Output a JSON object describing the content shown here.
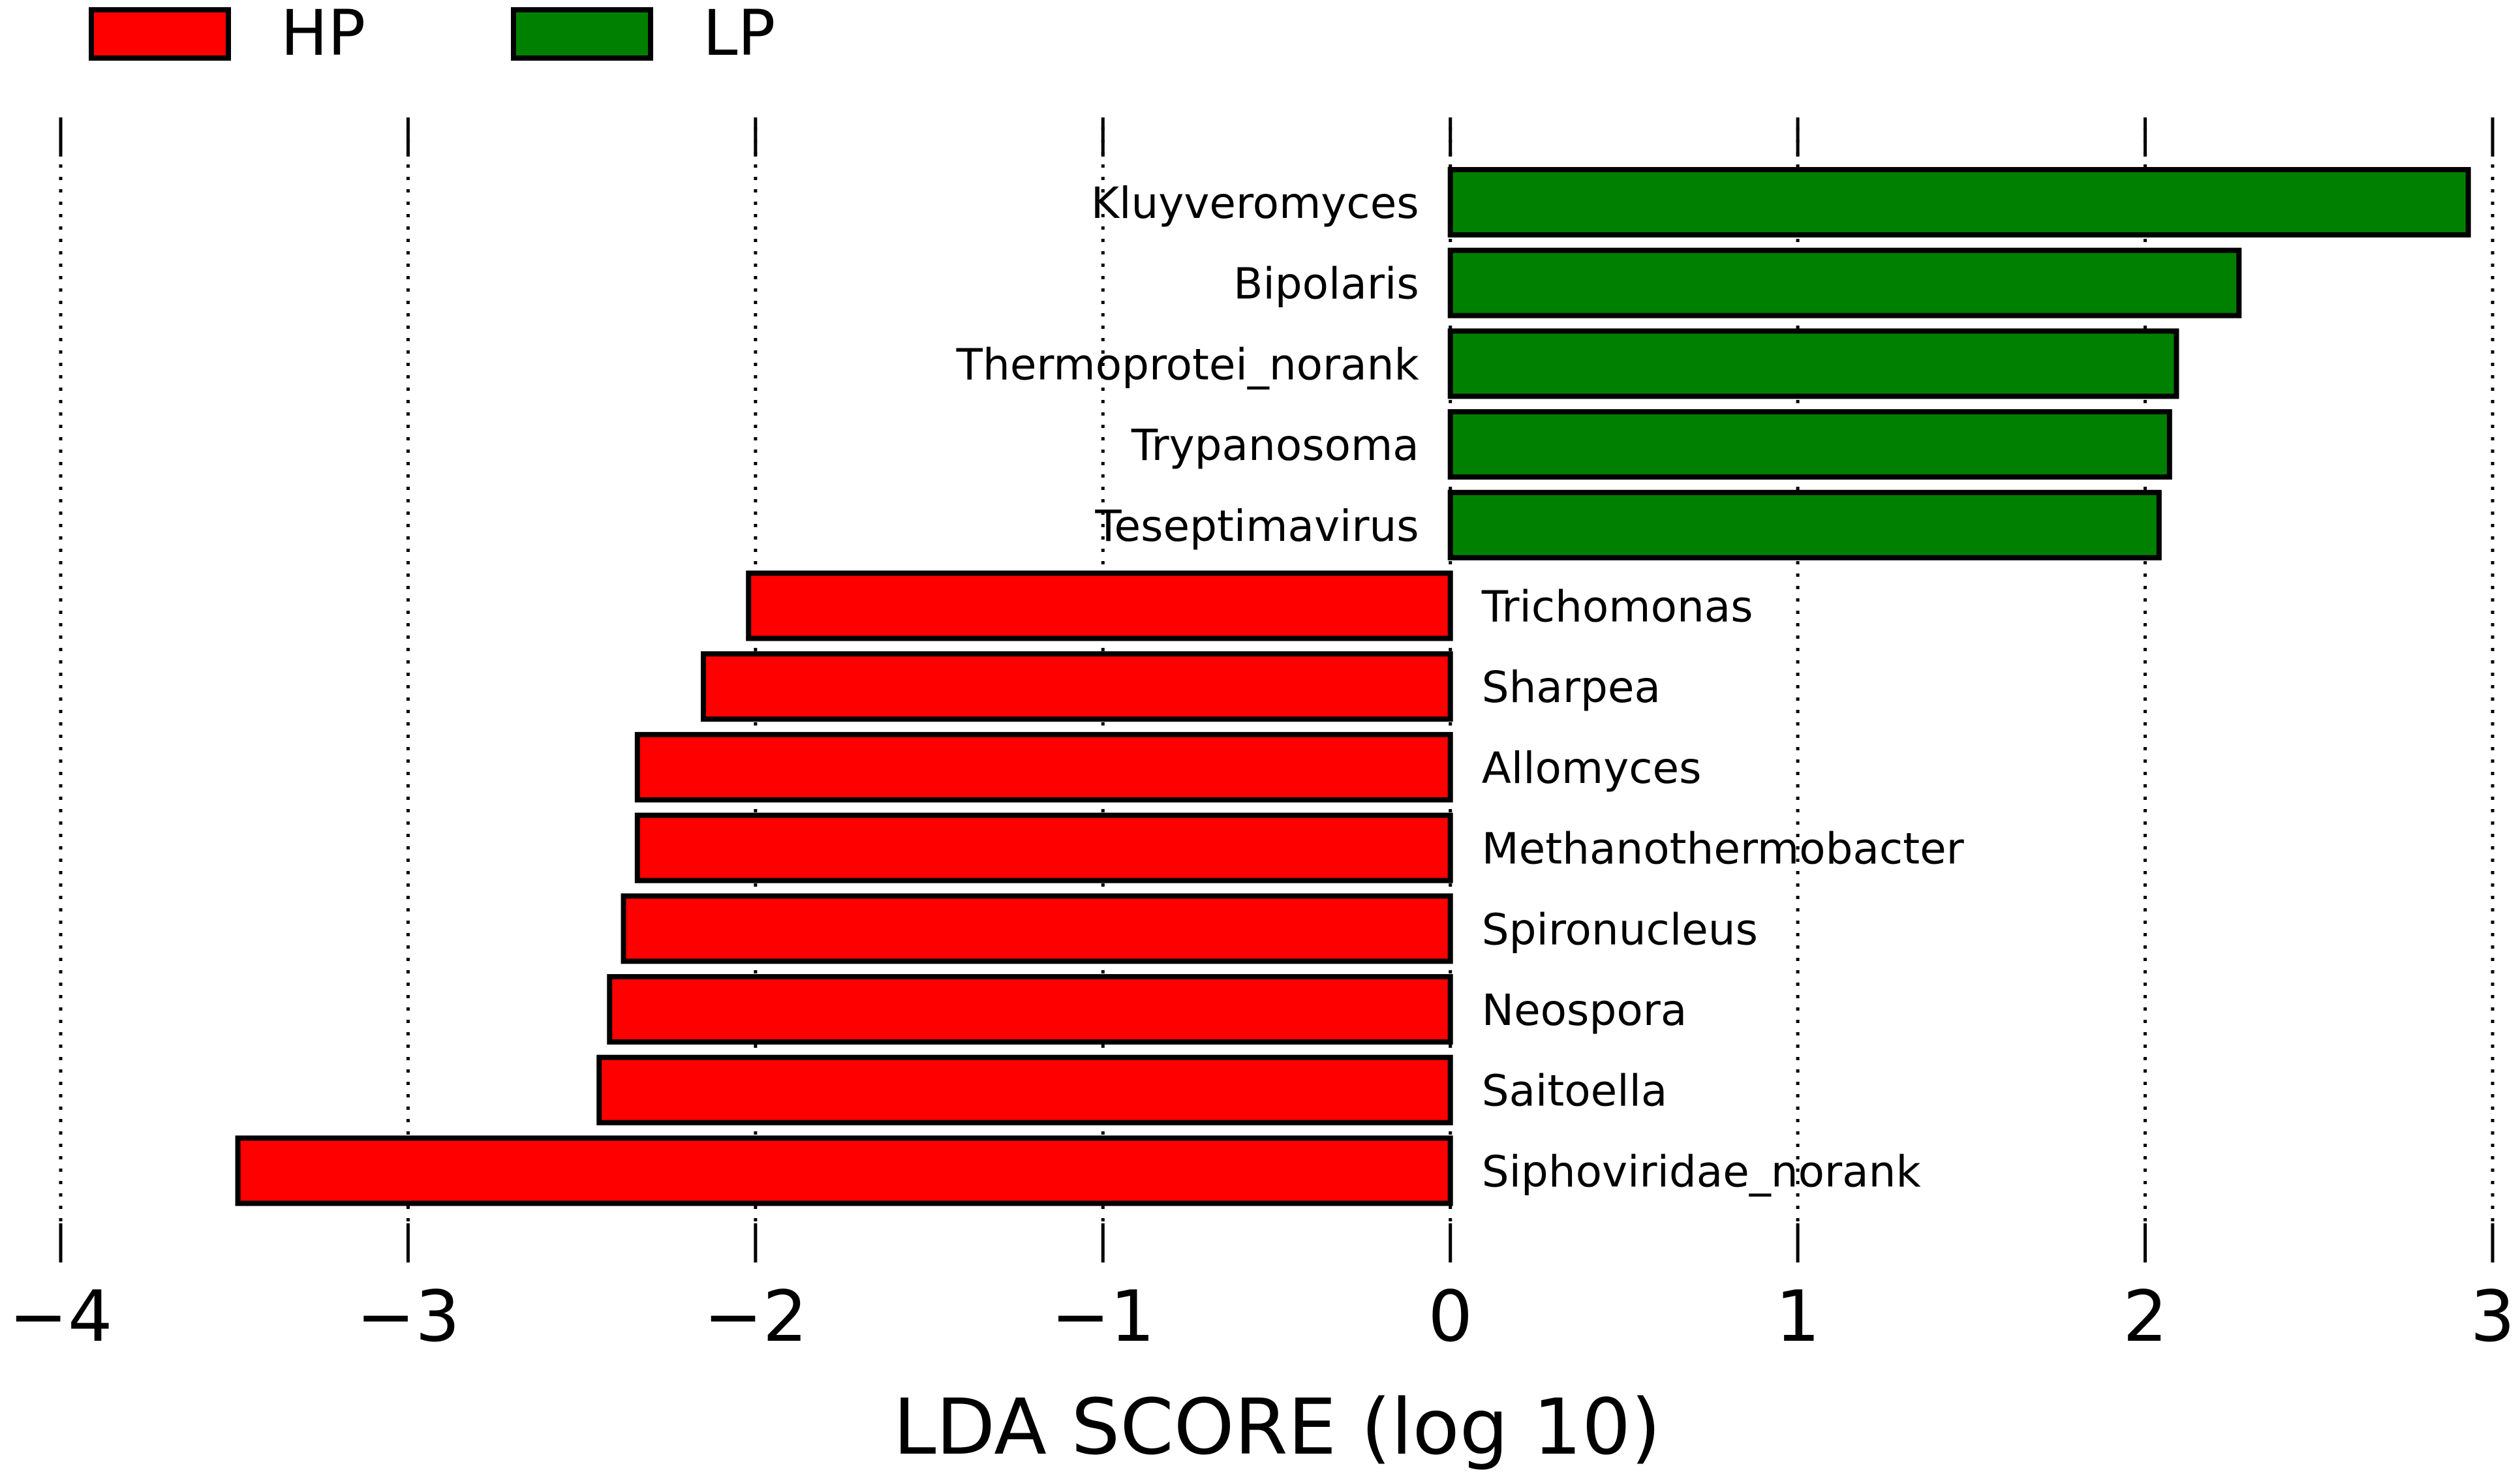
{
  "chart_data": {
    "type": "bar",
    "orientation": "horizontal",
    "xlabel": "LDA SCORE (log 10)",
    "xlim": [
      -4,
      3
    ],
    "xticks": [
      -4,
      -3,
      -2,
      -1,
      0,
      1,
      2,
      3
    ],
    "xtick_labels": [
      "−4",
      "−3",
      "−2",
      "−1",
      "0",
      "1",
      "2",
      "3"
    ],
    "grid": "vertical dotted",
    "legend": [
      {
        "name": "HP",
        "color": "#ff0000"
      },
      {
        "name": "LP",
        "color": "#008000"
      }
    ],
    "legend_position": "top-left",
    "bars": [
      {
        "label": "Kluyveromyces",
        "value": 2.93,
        "group": "LP"
      },
      {
        "label": "Bipolaris",
        "value": 2.27,
        "group": "LP"
      },
      {
        "label": "Thermoprotei_norank",
        "value": 2.09,
        "group": "LP"
      },
      {
        "label": "Trypanosoma",
        "value": 2.07,
        "group": "LP"
      },
      {
        "label": "Teseptimavirus",
        "value": 2.04,
        "group": "LP"
      },
      {
        "label": "Trichomonas",
        "value": -2.02,
        "group": "HP"
      },
      {
        "label": "Sharpea",
        "value": -2.15,
        "group": "HP"
      },
      {
        "label": "Allomyces",
        "value": -2.34,
        "group": "HP"
      },
      {
        "label": "Methanothermobacter",
        "value": -2.34,
        "group": "HP"
      },
      {
        "label": "Spironucleus",
        "value": -2.38,
        "group": "HP"
      },
      {
        "label": "Neospora",
        "value": -2.42,
        "group": "HP"
      },
      {
        "label": "Saitoella",
        "value": -2.45,
        "group": "HP"
      },
      {
        "label": "Siphoviridae_norank",
        "value": -3.49,
        "group": "HP"
      }
    ]
  }
}
